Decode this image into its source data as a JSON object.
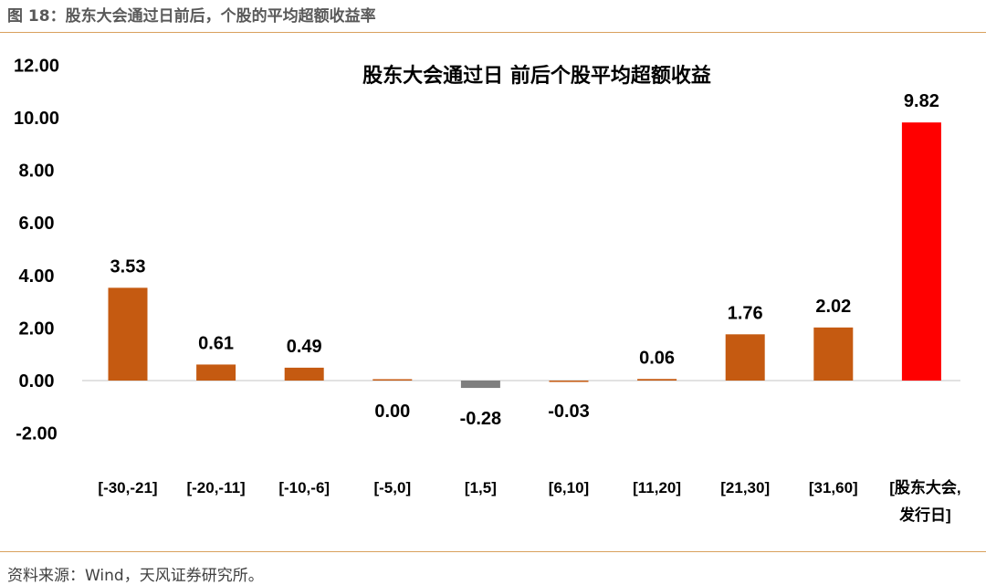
{
  "header": {
    "figure_caption": "图 18：股东大会通过日前后，个股的平均超额收益率"
  },
  "footer": {
    "source": "资料来源：Wind，天风证券研究所。"
  },
  "colors": {
    "bar": "#c55a11",
    "negative_bar": "#7f7f7f",
    "highlight_bar": "#ff0000",
    "rule": "#d9a15d"
  },
  "chart_data": {
    "type": "bar",
    "title": "股东大会通过日 前后个股平均超额收益",
    "categories": [
      "[-30,-21]",
      "[-20,-11]",
      "[-10,-6]",
      "[-5,0]",
      "[1,5]",
      "[6,10]",
      "[11,20]",
      "[21,30]",
      "[31,60]",
      "[股东大会,发行日]"
    ],
    "category_lines": [
      [
        "[-30,-21]"
      ],
      [
        "[-20,-11]"
      ],
      [
        "[-10,-6]"
      ],
      [
        "[-5,0]"
      ],
      [
        "[1,5]"
      ],
      [
        "[6,10]"
      ],
      [
        "[11,20]"
      ],
      [
        "[21,30]"
      ],
      [
        "[31,60]"
      ],
      [
        "[股东大会,",
        "发行日]"
      ]
    ],
    "values": [
      3.53,
      0.61,
      0.49,
      0.0,
      -0.28,
      -0.03,
      0.06,
      1.76,
      2.02,
      9.82
    ],
    "value_labels": [
      "3.53",
      "0.61",
      "0.49",
      "0.00",
      "-0.28",
      "-0.03",
      "0.06",
      "1.76",
      "2.02",
      "9.82"
    ],
    "yticks": [
      "12.00",
      "10.00",
      "8.00",
      "6.00",
      "4.00",
      "2.00",
      "0.00",
      "-2.00"
    ],
    "ylim": [
      -2,
      12
    ],
    "xlabel": "",
    "ylabel": "",
    "grid": false,
    "legend": "none"
  }
}
